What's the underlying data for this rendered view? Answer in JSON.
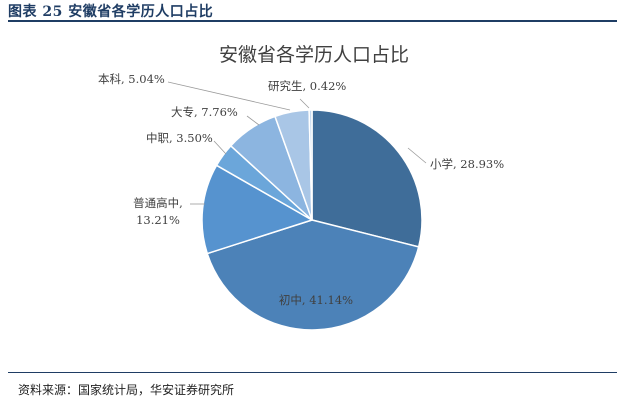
{
  "figure": {
    "label": "图表 25 安徽省各学历人口占比",
    "source": "资料来源：国家统计局，华安证券研究所"
  },
  "chart_data": {
    "type": "pie",
    "title": "安徽省各学历人口占比",
    "categories": [
      "小学",
      "初中",
      "普通高中",
      "中职",
      "大专",
      "本科",
      "研究生"
    ],
    "values": [
      28.93,
      41.14,
      13.21,
      3.5,
      7.76,
      5.04,
      0.42
    ],
    "data_labels": [
      "28.93%",
      "41.14%",
      "13.21%",
      "3.50%",
      "7.76%",
      "5.04%",
      "0.42%"
    ],
    "colors": [
      "#3f6d99",
      "#4c82b8",
      "#5693cf",
      "#6ba6da",
      "#8cb5e0",
      "#a9c6e6",
      "#c5d9ef"
    ],
    "start_angle_deg": 0,
    "direction": "clockwise"
  }
}
